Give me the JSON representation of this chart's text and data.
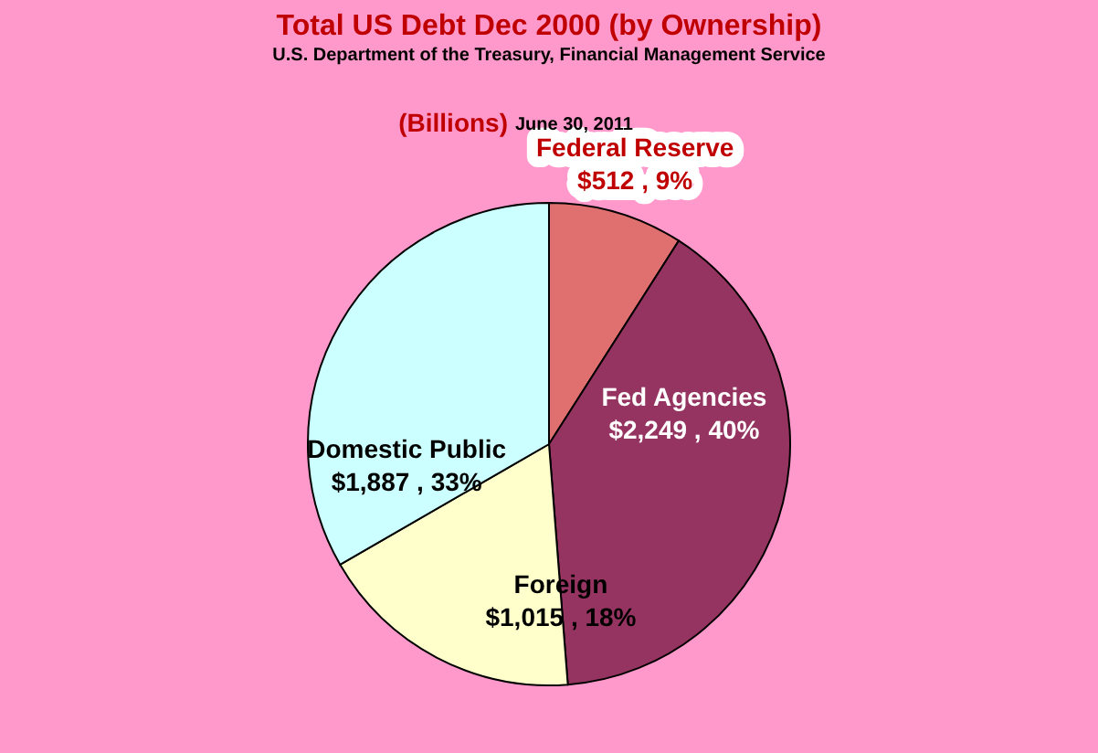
{
  "chart_data": {
    "type": "pie",
    "title": "Total US Debt Dec 2000 (by Ownership)",
    "subtitle": "U.S. Department of the Treasury, Financial Management Service",
    "annotations": [
      "(Billions)",
      "June 30, 2011"
    ],
    "categories": [
      "Federal Reserve",
      "Fed Agencies",
      "Foreign",
      "Domestic Public"
    ],
    "values": [
      512,
      2249,
      1015,
      1887
    ],
    "value_labels": [
      "$512 , 9%",
      "$2,249 , 40%",
      "$1,015 , 18%",
      "$1,887 , 33%"
    ],
    "colors": [
      "#e07070",
      "#953460",
      "#ffffcc",
      "#ccffff"
    ],
    "legend": false
  }
}
